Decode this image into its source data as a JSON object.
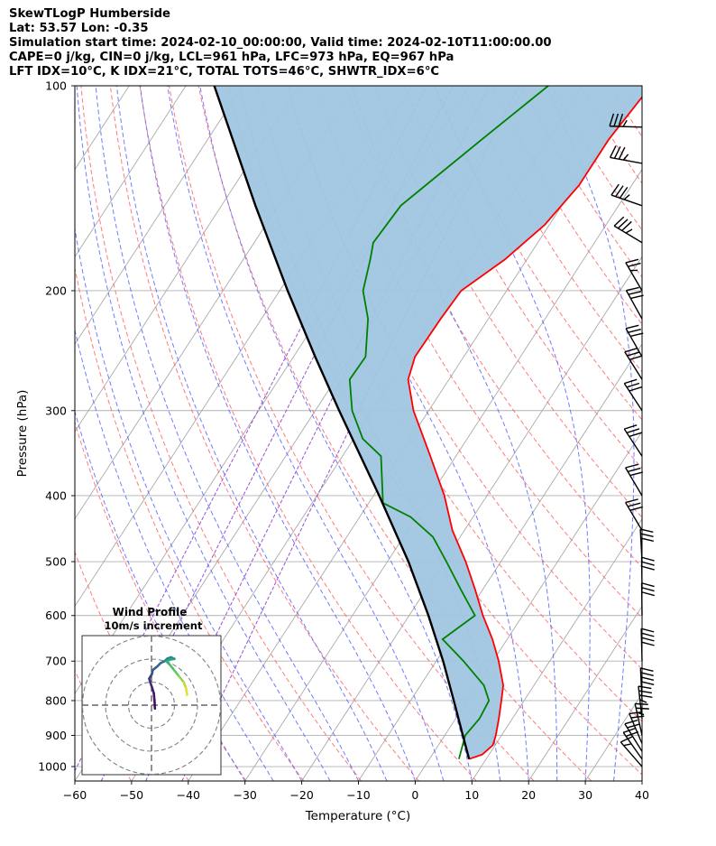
{
  "header": {
    "line1": "SkewTLogP Humberside",
    "line2": "Lat: 53.57   Lon: -0.35",
    "line3": "Simulation start time: 2024-02-10_00:00:00, Valid time: 2024-02-10T11:00:00.00",
    "line4": "CAPE=0 j/kg, CIN=0 j/kg, LCL=961 hPa, LFC=973 hPa, EQ=967 hPa",
    "line5": "LFT IDX=10°C, K IDX=21°C, TOTAL TOTS=46°C, SHWTR_IDX=6°C"
  },
  "colors": {
    "temperature": "#ff0000",
    "dewpoint": "#008000",
    "parcel": "#000000",
    "cape_fill": "#a0c6e0",
    "dry_adiabat": "#ff6464",
    "moist_adiabat": "#4b5bff",
    "mixing_ratio": "#9a4fd6",
    "isotherm": "#aaaaaa"
  },
  "chart_data": {
    "type": "skewt-logp",
    "xlabel": "Temperature (°C)",
    "ylabel": "Pressure (hPa)",
    "xlim": [
      -60,
      40
    ],
    "ylim": [
      1050,
      100
    ],
    "x_ticks": [
      "−60",
      "−50",
      "−40",
      "−30",
      "−20",
      "−10",
      "0",
      "10",
      "20",
      "30",
      "40"
    ],
    "y_ticks": [
      "1000",
      "900",
      "800",
      "700",
      "600",
      "500",
      "400",
      "300",
      "200",
      "100"
    ],
    "temperature_profile": [
      {
        "p": 975,
        "t": 7.0
      },
      {
        "p": 960,
        "t": 8.8
      },
      {
        "p": 930,
        "t": 9.6
      },
      {
        "p": 900,
        "t": 9.0
      },
      {
        "p": 850,
        "t": 7.6
      },
      {
        "p": 800,
        "t": 6.0
      },
      {
        "p": 760,
        "t": 4.6
      },
      {
        "p": 700,
        "t": 1.0
      },
      {
        "p": 650,
        "t": -2.6
      },
      {
        "p": 600,
        "t": -7.0
      },
      {
        "p": 550,
        "t": -11.3
      },
      {
        "p": 500,
        "t": -16.2
      },
      {
        "p": 450,
        "t": -22.1
      },
      {
        "p": 400,
        "t": -27.5
      },
      {
        "p": 350,
        "t": -34.5
      },
      {
        "p": 300,
        "t": -42.7
      },
      {
        "p": 270,
        "t": -47.2
      },
      {
        "p": 250,
        "t": -48.6
      },
      {
        "p": 220,
        "t": -48.4
      },
      {
        "p": 200,
        "t": -48.0
      },
      {
        "p": 180,
        "t": -43.9
      },
      {
        "p": 160,
        "t": -40.8
      },
      {
        "p": 140,
        "t": -39.3
      },
      {
        "p": 120,
        "t": -39.3
      },
      {
        "p": 100,
        "t": -38.0
      }
    ],
    "dewpoint_profile": [
      {
        "p": 975,
        "t": 5.2
      },
      {
        "p": 900,
        "t": 3.6
      },
      {
        "p": 850,
        "t": 4.2
      },
      {
        "p": 800,
        "t": 3.8
      },
      {
        "p": 760,
        "t": 1.2
      },
      {
        "p": 700,
        "t": -5.2
      },
      {
        "p": 650,
        "t": -11.4
      },
      {
        "p": 600,
        "t": -8.4
      },
      {
        "p": 550,
        "t": -13.8
      },
      {
        "p": 500,
        "t": -19.6
      },
      {
        "p": 460,
        "t": -24.8
      },
      {
        "p": 430,
        "t": -31.0
      },
      {
        "p": 410,
        "t": -37.5
      },
      {
        "p": 350,
        "t": -43.2
      },
      {
        "p": 330,
        "t": -48.4
      },
      {
        "p": 300,
        "t": -53.5
      },
      {
        "p": 270,
        "t": -57.5
      },
      {
        "p": 250,
        "t": -57.3
      },
      {
        "p": 220,
        "t": -61.2
      },
      {
        "p": 200,
        "t": -65.3
      },
      {
        "p": 180,
        "t": -67.6
      },
      {
        "p": 170,
        "t": -69.0
      },
      {
        "p": 150,
        "t": -68.4
      },
      {
        "p": 120,
        "t": -61.7
      },
      {
        "p": 100,
        "t": -56.1
      }
    ],
    "parcel_profile": [
      {
        "p": 975,
        "t": 7.0
      },
      {
        "p": 900,
        "t": 3.2
      },
      {
        "p": 800,
        "t": -2.4
      },
      {
        "p": 700,
        "t": -8.8
      },
      {
        "p": 600,
        "t": -16.6
      },
      {
        "p": 500,
        "t": -26.3
      },
      {
        "p": 400,
        "t": -39.0
      },
      {
        "p": 300,
        "t": -55.8
      },
      {
        "p": 250,
        "t": -66.2
      },
      {
        "p": 200,
        "t": -78.6
      },
      {
        "p": 150,
        "t": -94.0
      },
      {
        "p": 100,
        "t": -115.0
      }
    ],
    "isotherms": [
      -140,
      -130,
      -120,
      -110,
      -100,
      -90,
      -80,
      -70,
      -60,
      -50,
      -40,
      -30,
      -20,
      -10,
      0,
      10,
      20,
      30,
      40
    ],
    "dry_adiabats_theta_K": [
      210,
      220,
      230,
      240,
      250,
      260,
      270,
      280,
      290,
      300,
      310,
      320,
      330,
      340,
      350,
      360,
      370,
      380,
      390,
      400,
      410,
      420,
      430,
      440,
      450,
      460,
      470,
      480,
      490,
      500
    ],
    "moist_adiabats_C": [
      -30,
      -25,
      -20,
      -15,
      -10,
      -5,
      0,
      5,
      10,
      15,
      20,
      25,
      30,
      35
    ],
    "mixing_ratios_gkg": [
      0.01,
      0.02,
      0.05,
      0.1
    ],
    "wind_barbs": [
      {
        "p": 1000,
        "u": -4.8,
        "v": 5.5
      },
      {
        "p": 975,
        "u": -6.0,
        "v": 8.5
      },
      {
        "p": 950,
        "u": -5.5,
        "v": 8.8
      },
      {
        "p": 925,
        "u": -4.5,
        "v": 10.5
      },
      {
        "p": 900,
        "u": -3.0,
        "v": 13.5
      },
      {
        "p": 850,
        "u": -2.0,
        "v": 17.5
      },
      {
        "p": 800,
        "u": -1.0,
        "v": 21.0
      },
      {
        "p": 700,
        "u": -0.5,
        "v": 20.0
      },
      {
        "p": 600,
        "u": -0.2,
        "v": 16.0
      },
      {
        "p": 550,
        "u": -0.2,
        "v": 15.5
      },
      {
        "p": 500,
        "u": -0.8,
        "v": 15.0
      },
      {
        "p": 450,
        "u": -8.0,
        "v": 13.5
      },
      {
        "p": 400,
        "u": -8.0,
        "v": 13.5
      },
      {
        "p": 350,
        "u": -8.5,
        "v": 13.0
      },
      {
        "p": 300,
        "u": -8.5,
        "v": 13.0
      },
      {
        "p": 270,
        "u": -8.5,
        "v": 13.5
      },
      {
        "p": 250,
        "u": -8.0,
        "v": 14.0
      },
      {
        "p": 220,
        "u": -7.5,
        "v": 13.5
      },
      {
        "p": 200,
        "u": -7.0,
        "v": 12.0
      },
      {
        "p": 170,
        "u": -15.0,
        "v": 9.0
      },
      {
        "p": 150,
        "u": -16.0,
        "v": 5.5
      },
      {
        "p": 130,
        "u": -16.5,
        "v": 3.0
      },
      {
        "p": 115,
        "u": -17.5,
        "v": 0.5
      }
    ]
  },
  "hodograph": {
    "title_line1": "Wind Profile",
    "title_line2": "10m/s increment",
    "ring_increment_ms": 10,
    "points": [
      {
        "u": 1.5,
        "v": -1.5,
        "s": 0.02
      },
      {
        "u": 1.3,
        "v": 2.2,
        "s": 0.05
      },
      {
        "u": 1.0,
        "v": 5.2,
        "s": 0.08
      },
      {
        "u": 0.3,
        "v": 7.5,
        "s": 0.11
      },
      {
        "u": -0.5,
        "v": 9.8,
        "s": 0.14
      },
      {
        "u": -1.0,
        "v": 11.5,
        "s": 0.17
      },
      {
        "u": 0.2,
        "v": 13.5,
        "s": 0.22
      },
      {
        "u": 0.5,
        "v": 15.2,
        "s": 0.27
      },
      {
        "u": 2.5,
        "v": 16.8,
        "s": 0.32
      },
      {
        "u": 4.0,
        "v": 18.3,
        "s": 0.36
      },
      {
        "u": 5.5,
        "v": 19.0,
        "s": 0.4
      },
      {
        "u": 7.0,
        "v": 20.3,
        "s": 0.44
      },
      {
        "u": 8.5,
        "v": 20.8,
        "s": 0.48
      },
      {
        "u": 10.0,
        "v": 20.1,
        "s": 0.52
      },
      {
        "u": 8.2,
        "v": 19.8,
        "s": 0.56
      },
      {
        "u": 6.5,
        "v": 19.0,
        "s": 0.6
      },
      {
        "u": 8.0,
        "v": 17.5,
        "s": 0.65
      },
      {
        "u": 10.0,
        "v": 15.0,
        "s": 0.72
      },
      {
        "u": 12.0,
        "v": 12.5,
        "s": 0.8
      },
      {
        "u": 14.0,
        "v": 10.0,
        "s": 0.87
      },
      {
        "u": 15.0,
        "v": 7.5,
        "s": 0.93
      },
      {
        "u": 15.5,
        "v": 4.5,
        "s": 0.98
      }
    ]
  }
}
